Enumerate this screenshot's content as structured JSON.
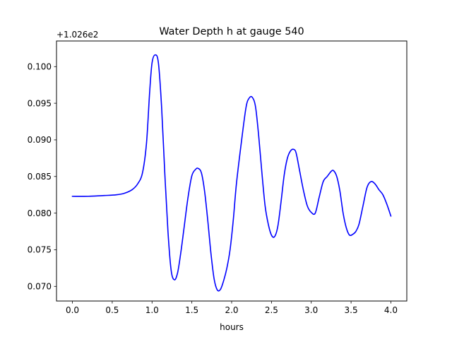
{
  "chart_data": {
    "type": "line",
    "title": "Water Depth h at gauge 540",
    "xlabel": "hours",
    "ylabel": "",
    "offset_label": "+1.026e2",
    "xlim": [
      -0.2,
      4.2
    ],
    "ylim": [
      0.068,
      0.1035
    ],
    "x_ticks": [
      0.0,
      0.5,
      1.0,
      1.5,
      2.0,
      2.5,
      3.0,
      3.5,
      4.0
    ],
    "x_tick_labels": [
      "0.0",
      "0.5",
      "1.0",
      "1.5",
      "2.0",
      "2.5",
      "3.0",
      "3.5",
      "4.0"
    ],
    "y_ticks": [
      0.07,
      0.075,
      0.08,
      0.085,
      0.09,
      0.095,
      0.1
    ],
    "y_tick_labels": [
      "0.070",
      "0.075",
      "0.080",
      "0.085",
      "0.090",
      "0.095",
      "0.100"
    ],
    "grid": false,
    "series": [
      {
        "color": "#0000ff",
        "x": [
          0.0,
          0.2,
          0.4,
          0.55,
          0.65,
          0.75,
          0.82,
          0.88,
          0.93,
          0.97,
          1.0,
          1.04,
          1.08,
          1.12,
          1.16,
          1.2,
          1.24,
          1.28,
          1.32,
          1.36,
          1.4,
          1.45,
          1.5,
          1.55,
          1.58,
          1.62,
          1.66,
          1.7,
          1.74,
          1.78,
          1.82,
          1.86,
          1.9,
          1.94,
          1.98,
          2.02,
          2.06,
          2.12,
          2.18,
          2.22,
          2.26,
          2.3,
          2.34,
          2.38,
          2.42,
          2.46,
          2.5,
          2.54,
          2.58,
          2.62,
          2.66,
          2.7,
          2.74,
          2.78,
          2.81,
          2.85,
          2.9,
          2.95,
          3.0,
          3.05,
          3.1,
          3.15,
          3.2,
          3.25,
          3.28,
          3.32,
          3.36,
          3.4,
          3.44,
          3.48,
          3.52,
          3.56,
          3.6,
          3.65,
          3.7,
          3.75,
          3.8,
          3.85,
          3.9,
          3.95,
          4.0
        ],
        "y": [
          0.0823,
          0.0823,
          0.0824,
          0.0825,
          0.0827,
          0.0832,
          0.084,
          0.0855,
          0.0895,
          0.0965,
          0.1005,
          0.1016,
          0.1005,
          0.0945,
          0.0855,
          0.0775,
          0.0722,
          0.0709,
          0.0718,
          0.0745,
          0.0778,
          0.082,
          0.0851,
          0.086,
          0.0861,
          0.0855,
          0.083,
          0.079,
          0.0745,
          0.071,
          0.0695,
          0.0696,
          0.0708,
          0.0725,
          0.075,
          0.079,
          0.084,
          0.0895,
          0.0944,
          0.0957,
          0.0958,
          0.0945,
          0.0905,
          0.0855,
          0.081,
          0.0785,
          0.077,
          0.0768,
          0.0782,
          0.0815,
          0.0852,
          0.0875,
          0.0885,
          0.0887,
          0.0882,
          0.086,
          0.0832,
          0.081,
          0.0801,
          0.08,
          0.0822,
          0.0843,
          0.085,
          0.0857,
          0.0858,
          0.085,
          0.083,
          0.08,
          0.078,
          0.077,
          0.0771,
          0.0775,
          0.0785,
          0.081,
          0.0835,
          0.0843,
          0.084,
          0.0832,
          0.0825,
          0.0812,
          0.0796
        ]
      }
    ]
  }
}
